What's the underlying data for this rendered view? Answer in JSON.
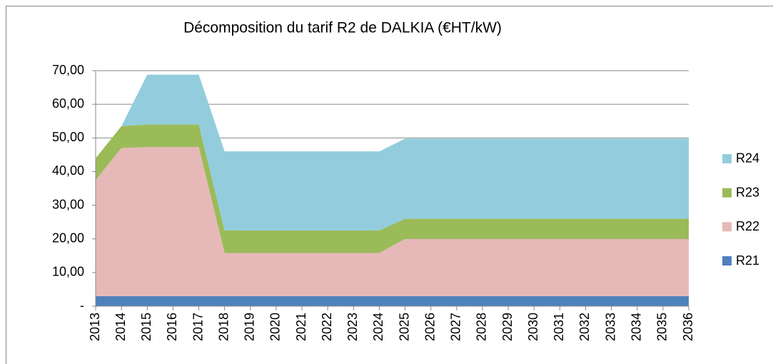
{
  "chart_data": {
    "type": "stacked_area",
    "title": "Décomposition du tarif R2 de DALKIA (€HT/kW)",
    "categories": [
      "2013",
      "2014",
      "2015",
      "2016",
      "2017",
      "2018",
      "2019",
      "2020",
      "2021",
      "2022",
      "2023",
      "2024",
      "2025",
      "2026",
      "2027",
      "2028",
      "2029",
      "2030",
      "2031",
      "2032",
      "2033",
      "2034",
      "2035",
      "2036"
    ],
    "series": [
      {
        "name": "R21",
        "color": "#4f81bd",
        "values": [
          3,
          3,
          3,
          3,
          3,
          3,
          3,
          3,
          3,
          3,
          3,
          3,
          3,
          3,
          3,
          3,
          3,
          3,
          3,
          3,
          3,
          3,
          3,
          3
        ]
      },
      {
        "name": "R22",
        "color": "#e6b9b8",
        "values": [
          34.5,
          44,
          44.3,
          44.3,
          44.3,
          12.8,
          12.8,
          12.8,
          12.8,
          12.8,
          12.8,
          12.8,
          17,
          17,
          17,
          17,
          17,
          17,
          17,
          17,
          17,
          17,
          17,
          17
        ]
      },
      {
        "name": "R23",
        "color": "#9bbb59",
        "values": [
          6.5,
          6.5,
          6.7,
          6.7,
          6.7,
          6.7,
          6.7,
          6.7,
          6.7,
          6.7,
          6.7,
          6.7,
          6,
          6,
          6,
          6,
          6,
          6,
          6,
          6,
          6,
          6,
          6,
          6
        ]
      },
      {
        "name": "R24",
        "color": "#93cddd",
        "values": [
          0,
          0,
          14.8,
          14.8,
          14.8,
          23.5,
          23.5,
          23.5,
          23.5,
          23.5,
          23.5,
          23.5,
          23.8,
          23.8,
          23.8,
          23.8,
          23.8,
          23.8,
          23.8,
          23.8,
          23.8,
          23.8,
          23.8,
          23.8
        ]
      }
    ],
    "ylim": [
      0,
      70
    ],
    "yticks": [
      {
        "value": 0,
        "label": "-"
      },
      {
        "value": 10,
        "label": "10,00"
      },
      {
        "value": 20,
        "label": "20,00"
      },
      {
        "value": 30,
        "label": "30,00"
      },
      {
        "value": 40,
        "label": "40,00"
      },
      {
        "value": 50,
        "label": "50,00"
      },
      {
        "value": 60,
        "label": "60,00"
      },
      {
        "value": 70,
        "label": "70,00"
      }
    ],
    "grid": true,
    "legend": "right"
  }
}
